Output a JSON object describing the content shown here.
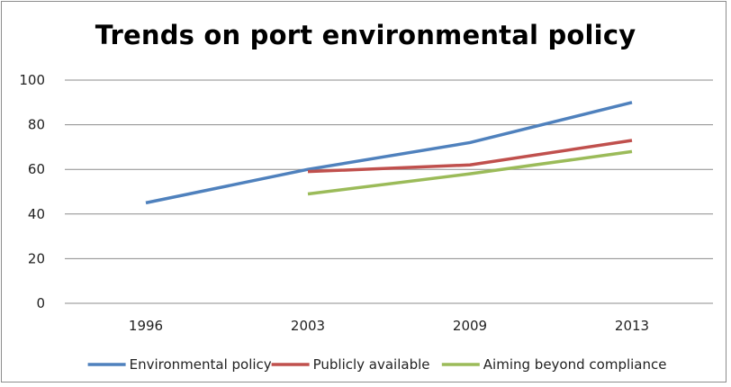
{
  "chart_data": {
    "type": "line",
    "title": "Trends on port environmental policy",
    "xlabel": "",
    "ylabel": "",
    "categories": [
      "1996",
      "2003",
      "2009",
      "2013"
    ],
    "ylim": [
      0,
      100
    ],
    "yticks": [
      0,
      20,
      40,
      60,
      80,
      100
    ],
    "grid": true,
    "legend_position": "bottom",
    "series": [
      {
        "name": "Environmental policy",
        "color": "#4F81BD",
        "values": [
          45,
          60,
          72,
          90
        ]
      },
      {
        "name": "Publicly available",
        "color": "#C0504D",
        "values": [
          null,
          59,
          62,
          73
        ]
      },
      {
        "name": "Aiming beyond compliance",
        "color": "#9BBB59",
        "values": [
          null,
          49,
          58,
          68
        ]
      }
    ]
  }
}
